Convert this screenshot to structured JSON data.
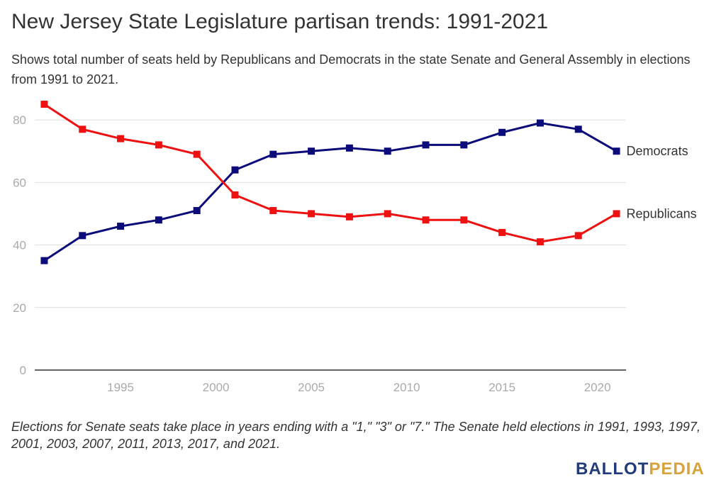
{
  "title": "New Jersey State Legislature partisan trends: 1991-2021",
  "subtitle": "Shows total number of seats held by Republicans and Democrats in the state Senate and General Assembly in elections from 1991 to 2021.",
  "note": "Elections for Senate seats take place in years ending with a \"1,\" \"3\" or \"7.\" The Senate held elections in 1991, 1993, 1997, 2001, 2003, 2007, 2011, 2013, 2017, and 2021.",
  "logo": {
    "part1": "BALLOT",
    "part2": "PEDIA"
  },
  "colors": {
    "democrats": "#0b0b7a",
    "republicans": "#ee1111",
    "grid": "#dddddd",
    "axis": "#333333"
  },
  "chart_data": {
    "type": "line",
    "x": [
      1991,
      1993,
      1995,
      1997,
      1999,
      2001,
      2003,
      2005,
      2007,
      2009,
      2011,
      2013,
      2015,
      2017,
      2019,
      2021
    ],
    "series": [
      {
        "name": "Democrats",
        "values": [
          35,
          43,
          46,
          48,
          51,
          64,
          69,
          70,
          71,
          70,
          72,
          72,
          76,
          79,
          77,
          70
        ]
      },
      {
        "name": "Republicans",
        "values": [
          85,
          77,
          74,
          72,
          69,
          56,
          51,
          50,
          49,
          50,
          48,
          48,
          44,
          41,
          43,
          50
        ]
      }
    ],
    "xticks": [
      "1995",
      "2000",
      "2005",
      "2010",
      "2015",
      "2020"
    ],
    "yticks": [
      "0",
      "20",
      "40",
      "60",
      "80"
    ],
    "xlim": [
      1990.5,
      2021.5
    ],
    "ylim": [
      0,
      90
    ],
    "grid": true,
    "legend": "direct labels at line ends"
  }
}
